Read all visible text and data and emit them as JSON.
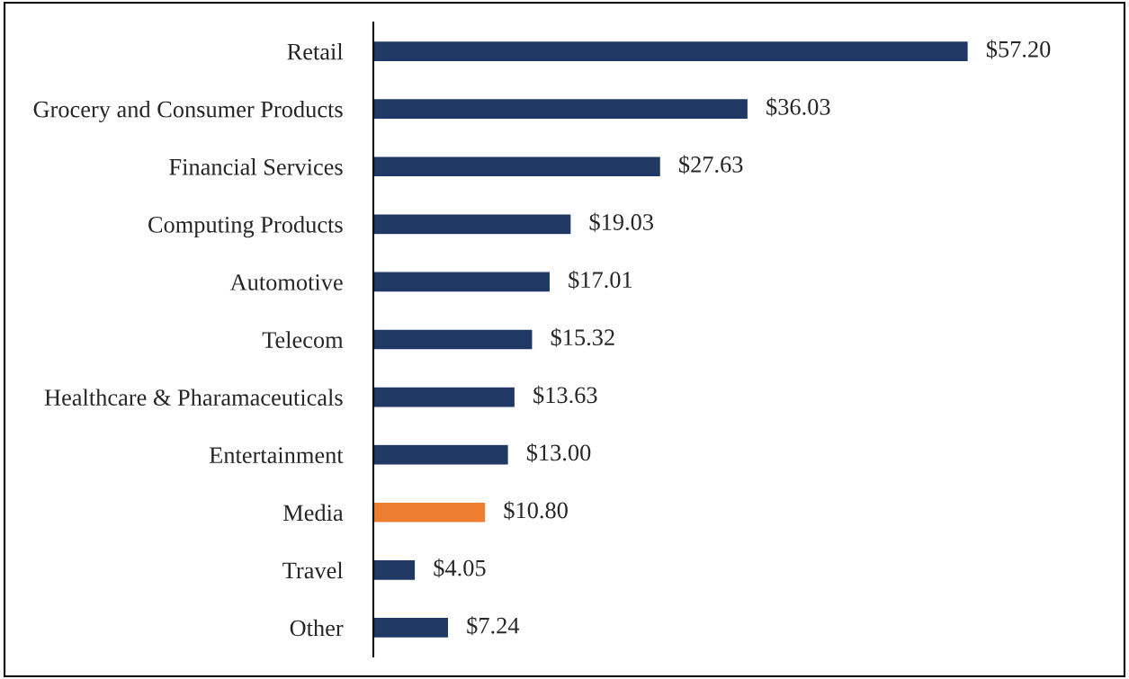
{
  "chart_data": {
    "type": "bar",
    "orientation": "horizontal",
    "categories": [
      "Retail",
      "Grocery and Consumer Products",
      "Financial Services",
      "Computing Products",
      "Automotive",
      "Telecom",
      "Healthcare & Pharamaceuticals",
      "Entertainment",
      "Media",
      "Travel",
      "Other"
    ],
    "values": [
      57.2,
      36.03,
      27.63,
      19.03,
      17.01,
      15.32,
      13.63,
      13.0,
      10.8,
      4.05,
      7.24
    ],
    "colors": [
      "#203864",
      "#203864",
      "#203864",
      "#203864",
      "#203864",
      "#203864",
      "#203864",
      "#203864",
      "#ed7d31",
      "#203864",
      "#203864"
    ],
    "value_labels": [
      "$57.20",
      "$36.03",
      "$27.63",
      "$19.03",
      "$17.01",
      "$15.32",
      "$13.63",
      "$13.00",
      "$10.80",
      "$4.05",
      "$7.24"
    ],
    "grid": false,
    "legend": false
  }
}
